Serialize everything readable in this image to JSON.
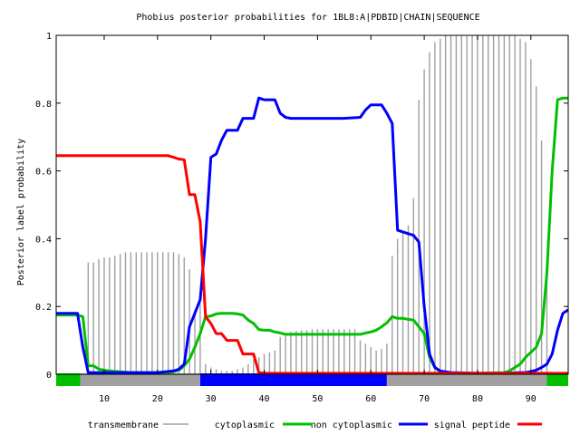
{
  "chart_data": {
    "type": "line",
    "title": "Phobius posterior probabilities for 1BL8:A|PDBID|CHAIN|SEQUENCE",
    "xlabel": "",
    "ylabel": "Posterior label probability",
    "xlim": [
      1,
      97
    ],
    "ylim": [
      0,
      1
    ],
    "x_ticks": [
      10,
      20,
      30,
      40,
      50,
      60,
      70,
      80,
      90
    ],
    "y_ticks": [
      0,
      0.2,
      0.4,
      0.6,
      0.8,
      1
    ],
    "y_tick_labels": [
      "0",
      "0.2",
      "0.4",
      "0.6",
      "0.8",
      "1"
    ],
    "grid": false,
    "legend_position": "bottom",
    "legend": [
      {
        "label": "transmembrane",
        "color": "#a0a0a0"
      },
      {
        "label": "cytoplasmic",
        "color": ""
      },
      {
        "label": "non cytoplasmic",
        "color": "#00c000"
      },
      {
        "label": "signal peptide",
        "color": "#0000ff"
      },
      {
        "label": "",
        "color": "#ff0000"
      }
    ],
    "bars": {
      "name": "transmembrane",
      "color": "#a0a0a0",
      "x": [
        1,
        2,
        3,
        4,
        5,
        6,
        7,
        8,
        9,
        10,
        11,
        12,
        13,
        14,
        15,
        16,
        17,
        18,
        19,
        20,
        21,
        22,
        23,
        24,
        25,
        26,
        27,
        28,
        29,
        30,
        31,
        32,
        33,
        34,
        35,
        36,
        37,
        38,
        39,
        40,
        41,
        42,
        43,
        44,
        45,
        46,
        47,
        48,
        49,
        50,
        51,
        52,
        53,
        54,
        55,
        56,
        57,
        58,
        59,
        60,
        61,
        62,
        63,
        64,
        65,
        66,
        67,
        68,
        69,
        70,
        71,
        72,
        73,
        74,
        75,
        76,
        77,
        78,
        79,
        80,
        81,
        82,
        83,
        84,
        85,
        86,
        87,
        88,
        89,
        90,
        91,
        92,
        93,
        94,
        95,
        96,
        97
      ],
      "values": [
        0,
        0,
        0,
        0,
        0,
        0,
        0.33,
        0.33,
        0.34,
        0.345,
        0.345,
        0.35,
        0.355,
        0.36,
        0.36,
        0.36,
        0.36,
        0.36,
        0.36,
        0.36,
        0.36,
        0.36,
        0.36,
        0.355,
        0.345,
        0.31,
        0.19,
        0.22,
        0.03,
        0.02,
        0.015,
        0.01,
        0.01,
        0.01,
        0.015,
        0.02,
        0.03,
        0.045,
        0.05,
        0.06,
        0.065,
        0.07,
        0.11,
        0.12,
        0.125,
        0.128,
        0.13,
        0.13,
        0.133,
        0.133,
        0.133,
        0.133,
        0.133,
        0.133,
        0.133,
        0.133,
        0.133,
        0.1,
        0.09,
        0.08,
        0.07,
        0.075,
        0.09,
        0.35,
        0.4,
        0.42,
        0.44,
        0.52,
        0.81,
        0.9,
        0.95,
        0.98,
        0.99,
        1,
        1,
        1,
        1,
        1,
        1,
        1,
        1,
        1,
        1,
        1,
        1,
        1,
        1,
        0.99,
        0.98,
        0.93,
        0.85,
        0.69,
        0.31,
        0,
        0,
        0,
        0
      ]
    },
    "series": [
      {
        "name": "non cytoplasmic",
        "color": "#00c000",
        "x": [
          1,
          5,
          6,
          7,
          8,
          9,
          10,
          11,
          15,
          20,
          22,
          23,
          24,
          25,
          26,
          27,
          28,
          29,
          30,
          31,
          32,
          33,
          34,
          35,
          36,
          37,
          38,
          39,
          40,
          41,
          42,
          43,
          44,
          46,
          50,
          55,
          58,
          59,
          60,
          61,
          62,
          63,
          64,
          65,
          66,
          67,
          68,
          69,
          70,
          71,
          72,
          73,
          75,
          80,
          85,
          86,
          87,
          88,
          89,
          90,
          91,
          92,
          93,
          94,
          95,
          96,
          97
        ],
        "values": [
          0.175,
          0.175,
          0.17,
          0.025,
          0.025,
          0.015,
          0.012,
          0.01,
          0.005,
          0.005,
          0.005,
          0.008,
          0.012,
          0.025,
          0.045,
          0.08,
          0.12,
          0.17,
          0.172,
          0.178,
          0.18,
          0.18,
          0.18,
          0.178,
          0.175,
          0.16,
          0.15,
          0.132,
          0.13,
          0.13,
          0.125,
          0.122,
          0.118,
          0.118,
          0.118,
          0.118,
          0.118,
          0.122,
          0.125,
          0.13,
          0.14,
          0.152,
          0.17,
          0.165,
          0.165,
          0.162,
          0.16,
          0.14,
          0.12,
          0.05,
          0.02,
          0.008,
          0.003,
          0.003,
          0.005,
          0.01,
          0.02,
          0.03,
          0.05,
          0.065,
          0.08,
          0.12,
          0.3,
          0.6,
          0.81,
          0.815,
          0.815
        ]
      },
      {
        "name": "signal peptide",
        "color": "#0000ff",
        "x": [
          1,
          5,
          6,
          7,
          10,
          20,
          23,
          24,
          25,
          26,
          27,
          28,
          29,
          30,
          31,
          32,
          33,
          34,
          35,
          36,
          37,
          38,
          39,
          40,
          41,
          42,
          43,
          44,
          45,
          50,
          55,
          58,
          59,
          60,
          61,
          62,
          63,
          64,
          65,
          66,
          67,
          68,
          69,
          70,
          71,
          72,
          73,
          75,
          80,
          85,
          88,
          89,
          90,
          91,
          92,
          93,
          94,
          95,
          96,
          97
        ],
        "values": [
          0.18,
          0.18,
          0.08,
          0.005,
          0.005,
          0.005,
          0.01,
          0.015,
          0.03,
          0.14,
          0.18,
          0.22,
          0.4,
          0.64,
          0.65,
          0.69,
          0.72,
          0.72,
          0.72,
          0.755,
          0.755,
          0.755,
          0.815,
          0.81,
          0.81,
          0.81,
          0.77,
          0.758,
          0.755,
          0.755,
          0.755,
          0.758,
          0.78,
          0.795,
          0.795,
          0.795,
          0.77,
          0.74,
          0.425,
          0.42,
          0.415,
          0.41,
          0.39,
          0.2,
          0.06,
          0.02,
          0.01,
          0.005,
          0.003,
          0.003,
          0.005,
          0.005,
          0.008,
          0.012,
          0.02,
          0.03,
          0.06,
          0.13,
          0.18,
          0.19
        ]
      },
      {
        "name": "",
        "color": "#ff0000",
        "x": [
          1,
          20,
          22,
          23,
          24,
          25,
          26,
          27,
          28,
          29,
          30,
          31,
          32,
          33,
          34,
          35,
          36,
          37,
          38,
          39,
          40,
          50,
          60,
          70,
          80,
          90,
          97
        ],
        "values": [
          0.645,
          0.645,
          0.645,
          0.64,
          0.635,
          0.633,
          0.53,
          0.53,
          0.45,
          0.17,
          0.15,
          0.12,
          0.12,
          0.1,
          0.1,
          0.1,
          0.06,
          0.06,
          0.06,
          0.005,
          0.003,
          0.003,
          0.003,
          0.003,
          0.003,
          0.003,
          0.003
        ]
      }
    ],
    "topology_track": [
      {
        "from": 1,
        "to": 5.5,
        "color": "#00c000"
      },
      {
        "from": 5.5,
        "to": 28,
        "color": "#a0a0a0"
      },
      {
        "from": 28,
        "to": 63,
        "color": "#0000ff"
      },
      {
        "from": 63,
        "to": 93,
        "color": "#a0a0a0"
      },
      {
        "from": 93,
        "to": 97,
        "color": "#00c000"
      }
    ]
  }
}
